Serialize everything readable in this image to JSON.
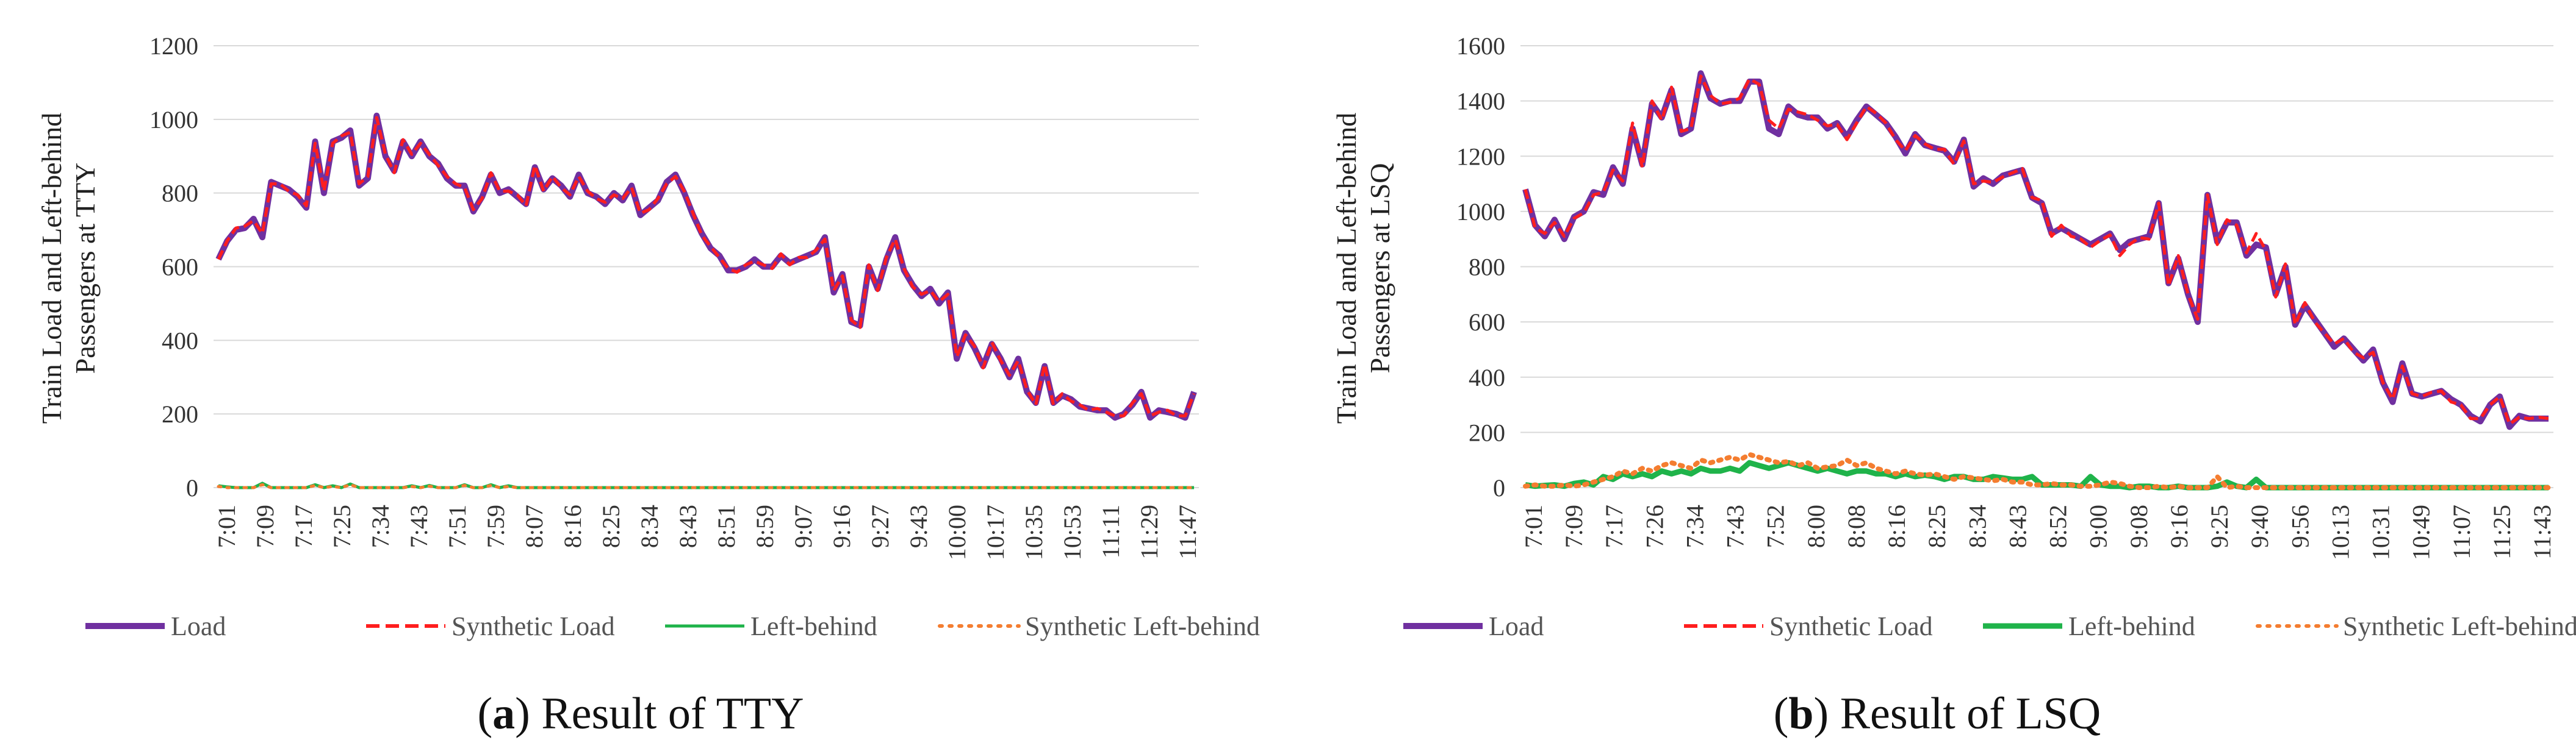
{
  "chart_data": [
    {
      "type": "line",
      "id": "a",
      "caption_letter": "a",
      "caption_text": ") Result of TTY",
      "caption_open": "(",
      "ylabel_line1": "Train Load and Left-behind",
      "ylabel_line2": "Passengers at TTY",
      "ylim": [
        0,
        1200
      ],
      "yticks": [
        "0",
        "200",
        "400",
        "600",
        "800",
        "1000",
        "1200"
      ],
      "x_tick_labels": [
        "7:01",
        "7:09",
        "7:17",
        "7:25",
        "7:34",
        "7:43",
        "7:51",
        "7:59",
        "8:07",
        "8:16",
        "8:25",
        "8:34",
        "8:43",
        "8:51",
        "8:59",
        "9:07",
        "9:16",
        "9:27",
        "9:43",
        "10:00",
        "10:17",
        "10:35",
        "10:53",
        "11:11",
        "11:29",
        "11:47"
      ],
      "legend": [
        "Load",
        "Synthetic Load",
        "Left-behind",
        "Synthetic Left-behind"
      ],
      "series": [
        {
          "name": "Load",
          "color": "#7030a0",
          "style": "solid",
          "width": 10,
          "values": [
            620,
            670,
            700,
            705,
            730,
            680,
            830,
            820,
            810,
            790,
            760,
            940,
            800,
            940,
            950,
            970,
            820,
            840,
            1010,
            900,
            860,
            940,
            900,
            940,
            900,
            880,
            840,
            820,
            820,
            750,
            790,
            850,
            800,
            810,
            790,
            770,
            870,
            810,
            840,
            820,
            790,
            850,
            800,
            790,
            770,
            800,
            780,
            820,
            740,
            760,
            780,
            830,
            850,
            800,
            740,
            690,
            650,
            630,
            590,
            590,
            600,
            620,
            600,
            600,
            630,
            610,
            620,
            630,
            640,
            680,
            530,
            580,
            450,
            440,
            600,
            540,
            620,
            680,
            590,
            550,
            520,
            540,
            500,
            530,
            350,
            420,
            380,
            330,
            390,
            350,
            300,
            350,
            260,
            230,
            330,
            230,
            250,
            240,
            220,
            215,
            210,
            210,
            190,
            200,
            225,
            260,
            190,
            210,
            205,
            200,
            190,
            260
          ]
        },
        {
          "name": "Synthetic Load",
          "color": "#ff1e1e",
          "style": "dash",
          "width": 5,
          "values": [
            620,
            670,
            705,
            710,
            725,
            690,
            825,
            825,
            805,
            795,
            765,
            935,
            805,
            935,
            955,
            965,
            825,
            845,
            1005,
            905,
            855,
            945,
            905,
            935,
            905,
            875,
            845,
            825,
            815,
            755,
            785,
            855,
            805,
            805,
            795,
            765,
            875,
            805,
            845,
            815,
            795,
            845,
            805,
            785,
            775,
            795,
            785,
            815,
            745,
            755,
            785,
            825,
            845,
            805,
            745,
            685,
            655,
            625,
            595,
            585,
            605,
            615,
            605,
            595,
            635,
            605,
            625,
            625,
            645,
            675,
            535,
            575,
            455,
            435,
            605,
            535,
            625,
            675,
            595,
            545,
            525,
            535,
            505,
            525,
            355,
            415,
            385,
            325,
            395,
            345,
            305,
            345,
            265,
            225,
            335,
            225,
            255,
            235,
            225,
            210,
            215,
            205,
            195,
            195,
            230,
            255,
            195,
            205,
            210,
            195,
            195,
            255
          ]
        },
        {
          "name": "Left-behind",
          "color": "#1fb34a",
          "style": "solid",
          "width": 5,
          "values": [
            5,
            2,
            0,
            0,
            0,
            12,
            0,
            0,
            0,
            0,
            0,
            8,
            0,
            5,
            0,
            10,
            0,
            0,
            0,
            0,
            0,
            0,
            5,
            0,
            6,
            0,
            0,
            0,
            8,
            0,
            0,
            8,
            0,
            5,
            0,
            0,
            0,
            0,
            0,
            0,
            0,
            0,
            0,
            0,
            0,
            0,
            0,
            0,
            0,
            0,
            0,
            0,
            0,
            0,
            0,
            0,
            0,
            0,
            0,
            0,
            0,
            0,
            0,
            0,
            0,
            0,
            0,
            0,
            0,
            0,
            0,
            0,
            0,
            0,
            0,
            0,
            0,
            0,
            0,
            0,
            0,
            0,
            0,
            0,
            0,
            0,
            0,
            0,
            0,
            0,
            0,
            0,
            0,
            0,
            0,
            0,
            0,
            0,
            0,
            0,
            0,
            0,
            0,
            0,
            0,
            0,
            0,
            0,
            0,
            0,
            0,
            0
          ]
        },
        {
          "name": "Synthetic Left-behind",
          "color": "#f47d30",
          "style": "dot",
          "width": 5,
          "values": [
            3,
            0,
            0,
            0,
            0,
            8,
            0,
            0,
            0,
            0,
            0,
            6,
            0,
            3,
            0,
            8,
            0,
            0,
            0,
            0,
            0,
            0,
            3,
            0,
            4,
            0,
            0,
            0,
            6,
            0,
            0,
            6,
            0,
            3,
            0,
            0,
            0,
            0,
            0,
            0,
            0,
            0,
            0,
            0,
            0,
            0,
            0,
            0,
            0,
            0,
            0,
            0,
            0,
            0,
            0,
            0,
            0,
            0,
            0,
            0,
            0,
            0,
            0,
            0,
            0,
            0,
            0,
            0,
            0,
            0,
            0,
            0,
            0,
            0,
            0,
            0,
            0,
            0,
            0,
            0,
            0,
            0,
            0,
            0,
            0,
            0,
            0,
            0,
            0,
            0,
            0,
            0,
            0,
            0,
            0,
            0,
            0,
            0,
            0,
            0,
            0,
            0,
            0,
            0,
            0,
            0,
            0,
            0,
            0,
            0,
            0,
            0
          ]
        }
      ]
    },
    {
      "type": "line",
      "id": "b",
      "caption_letter": "b",
      "caption_text": ") Result of LSQ",
      "caption_open": "(",
      "ylabel_line1": "Train Load and Left-behind",
      "ylabel_line2": "Passengers at LSQ",
      "ylim": [
        0,
        1600
      ],
      "yticks": [
        "0",
        "200",
        "400",
        "600",
        "800",
        "1000",
        "1200",
        "1400",
        "1600"
      ],
      "x_tick_labels": [
        "7:01",
        "7:09",
        "7:17",
        "7:26",
        "7:34",
        "7:43",
        "7:52",
        "8:00",
        "8:08",
        "8:16",
        "8:25",
        "8:34",
        "8:43",
        "8:52",
        "9:00",
        "9:08",
        "9:16",
        "9:25",
        "9:40",
        "9:56",
        "10:13",
        "10:31",
        "10:49",
        "11:07",
        "11:25",
        "11:43"
      ],
      "legend": [
        "Load",
        "Synthetic Load",
        "Left-behind",
        "Synthetic Left-behind"
      ],
      "series": [
        {
          "name": "Load",
          "color": "#7030a0",
          "style": "solid",
          "width": 10,
          "values": [
            1080,
            950,
            910,
            970,
            900,
            980,
            1000,
            1070,
            1060,
            1160,
            1100,
            1300,
            1170,
            1390,
            1340,
            1440,
            1280,
            1300,
            1500,
            1410,
            1390,
            1400,
            1400,
            1470,
            1470,
            1300,
            1280,
            1380,
            1350,
            1340,
            1340,
            1300,
            1320,
            1270,
            1330,
            1380,
            1350,
            1320,
            1270,
            1210,
            1280,
            1240,
            1230,
            1220,
            1180,
            1260,
            1090,
            1120,
            1100,
            1130,
            1140,
            1150,
            1050,
            1030,
            920,
            940,
            920,
            900,
            880,
            900,
            920,
            860,
            890,
            900,
            910,
            1030,
            740,
            830,
            700,
            600,
            1060,
            890,
            960,
            960,
            840,
            880,
            870,
            700,
            800,
            590,
            660,
            610,
            560,
            510,
            540,
            500,
            460,
            500,
            380,
            310,
            450,
            340,
            330,
            340,
            350,
            320,
            300,
            260,
            240,
            300,
            330,
            220,
            260,
            250,
            250,
            250
          ]
        },
        {
          "name": "Synthetic Load",
          "color": "#ff1e1e",
          "style": "dash",
          "width": 5,
          "values": [
            1080,
            940,
            920,
            960,
            910,
            975,
            995,
            1060,
            1070,
            1150,
            1110,
            1320,
            1160,
            1400,
            1330,
            1450,
            1290,
            1300,
            1490,
            1420,
            1390,
            1395,
            1410,
            1480,
            1460,
            1330,
            1300,
            1370,
            1360,
            1350,
            1330,
            1310,
            1315,
            1260,
            1320,
            1380,
            1355,
            1320,
            1260,
            1220,
            1275,
            1245,
            1225,
            1225,
            1170,
            1255,
            1100,
            1110,
            1105,
            1125,
            1140,
            1155,
            1050,
            1040,
            910,
            950,
            910,
            900,
            870,
            895,
            915,
            840,
            880,
            905,
            900,
            1030,
            730,
            840,
            700,
            610,
            1060,
            880,
            970,
            950,
            850,
            920,
            860,
            690,
            810,
            590,
            670,
            600,
            560,
            520,
            540,
            490,
            470,
            490,
            380,
            320,
            440,
            340,
            330,
            345,
            350,
            310,
            300,
            250,
            250,
            300,
            330,
            230,
            255,
            250,
            255,
            250
          ]
        },
        {
          "name": "Left-behind",
          "color": "#1fb34a",
          "style": "solid",
          "width": 9,
          "values": [
            10,
            5,
            8,
            10,
            5,
            15,
            20,
            10,
            40,
            30,
            50,
            40,
            50,
            40,
            60,
            50,
            60,
            50,
            70,
            60,
            60,
            70,
            60,
            90,
            80,
            70,
            80,
            90,
            80,
            70,
            60,
            70,
            60,
            50,
            60,
            60,
            50,
            50,
            40,
            50,
            40,
            45,
            40,
            30,
            40,
            40,
            30,
            30,
            40,
            35,
            30,
            30,
            40,
            10,
            10,
            10,
            10,
            5,
            40,
            10,
            5,
            5,
            0,
            5,
            5,
            0,
            0,
            5,
            0,
            0,
            0,
            5,
            20,
            5,
            0,
            30,
            0,
            0,
            0,
            0,
            0,
            0,
            0,
            0,
            0,
            0,
            0,
            0,
            0,
            0,
            0,
            0,
            0,
            0,
            0,
            0,
            0,
            0,
            0,
            0,
            0,
            0,
            0,
            0,
            0,
            0
          ]
        },
        {
          "name": "Synthetic Left-behind",
          "color": "#f47d30",
          "style": "dot",
          "width": 8,
          "values": [
            5,
            10,
            5,
            5,
            10,
            5,
            10,
            20,
            30,
            40,
            60,
            50,
            70,
            60,
            80,
            90,
            80,
            70,
            100,
            90,
            100,
            110,
            100,
            120,
            110,
            100,
            90,
            95,
            80,
            90,
            70,
            75,
            80,
            100,
            80,
            90,
            70,
            60,
            50,
            60,
            50,
            45,
            50,
            40,
            30,
            40,
            35,
            30,
            25,
            30,
            20,
            20,
            10,
            10,
            15,
            10,
            10,
            5,
            5,
            10,
            20,
            15,
            5,
            0,
            0,
            5,
            0,
            5,
            0,
            0,
            0,
            40,
            0,
            5,
            0,
            0,
            0,
            0,
            0,
            0,
            0,
            0,
            0,
            0,
            0,
            0,
            0,
            0,
            0,
            0,
            0,
            0,
            0,
            0,
            0,
            0,
            0,
            0,
            0,
            0,
            0,
            0,
            0,
            0,
            0,
            0
          ]
        }
      ]
    }
  ]
}
